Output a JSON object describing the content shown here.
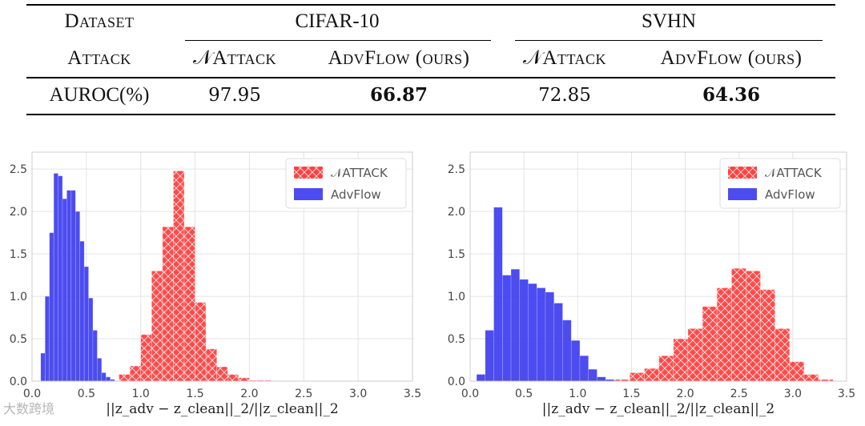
{
  "table": {
    "header_row1": {
      "label": "Dataset",
      "group1": "CIFAR-10",
      "group2": "SVHN"
    },
    "header_row2": {
      "label": "Attack",
      "c1": "𝒩Attack",
      "c2": "AdvFlow (ours)",
      "c3": "𝒩Attack",
      "c4": "AdvFlow (ours)"
    },
    "data_row": {
      "label": "AUROC(%)",
      "c1": "97.95",
      "c2": "66.87",
      "c3": "72.85",
      "c4": "64.36"
    }
  },
  "colors": {
    "nattack": "#ff4040",
    "advflow": "#3333ee"
  },
  "chart_data": [
    {
      "type": "bar",
      "dataset": "CIFAR-10",
      "xlabel": "||z_adv − z_clean||_2/||z_clean||_2",
      "xlim": [
        0,
        3.5
      ],
      "ylim": [
        0,
        2.7
      ],
      "xticks": [
        "0.0",
        "0.5",
        "1.0",
        "1.5",
        "2.0",
        "2.5",
        "3.0",
        "3.5"
      ],
      "yticks": [
        "0.0",
        "0.5",
        "1.0",
        "1.5",
        "2.0",
        "2.5"
      ],
      "legend": [
        "𝒩ATTACK",
        "AdvFlow"
      ],
      "legend_position": "top-right",
      "grid": true,
      "series": [
        {
          "name": "𝒩ATTACK",
          "bin_start": 0.8,
          "bin_width": 0.1,
          "values": [
            0.08,
            0.18,
            0.55,
            1.3,
            1.82,
            2.48,
            1.82,
            0.93,
            0.38,
            0.17,
            0.08,
            0.04,
            0.01,
            0.01,
            0.005
          ]
        },
        {
          "name": "AdvFlow",
          "bin_start": 0.08,
          "bin_width": 0.04,
          "values": [
            0.33,
            1.0,
            1.75,
            2.45,
            2.42,
            2.15,
            2.25,
            2.25,
            2.0,
            1.65,
            1.35,
            0.98,
            0.6,
            0.27,
            0.1,
            0.05,
            0.02
          ]
        }
      ]
    },
    {
      "type": "bar",
      "dataset": "SVHN",
      "xlabel": "||z_adv − z_clean||_2/||z_clean||_2",
      "xlim": [
        0,
        3.5
      ],
      "ylim": [
        0,
        2.7
      ],
      "xticks": [
        "0.0",
        "0.5",
        "1.0",
        "1.5",
        "2.0",
        "2.5",
        "3.0",
        "3.5"
      ],
      "yticks": [
        "0.0",
        "0.5",
        "1.0",
        "1.5",
        "2.0",
        "2.5"
      ],
      "legend": [
        "𝒩ATTACK",
        "AdvFlow"
      ],
      "legend_position": "top-right",
      "grid": true,
      "series": [
        {
          "name": "𝒩ATTACK",
          "bin_start": 1.35,
          "bin_width": 0.135,
          "values": [
            0.02,
            0.1,
            0.15,
            0.3,
            0.5,
            0.62,
            0.88,
            1.1,
            1.33,
            1.3,
            1.08,
            0.62,
            0.23,
            0.08,
            0.02
          ]
        },
        {
          "name": "AdvFlow",
          "bin_start": 0.06,
          "bin_width": 0.08,
          "values": [
            0.08,
            0.6,
            2.05,
            1.25,
            1.32,
            1.2,
            1.15,
            1.1,
            1.05,
            0.92,
            0.72,
            0.48,
            0.3,
            0.14,
            0.05,
            0.02,
            0.01
          ]
        }
      ]
    }
  ],
  "watermark": "大数跨境"
}
